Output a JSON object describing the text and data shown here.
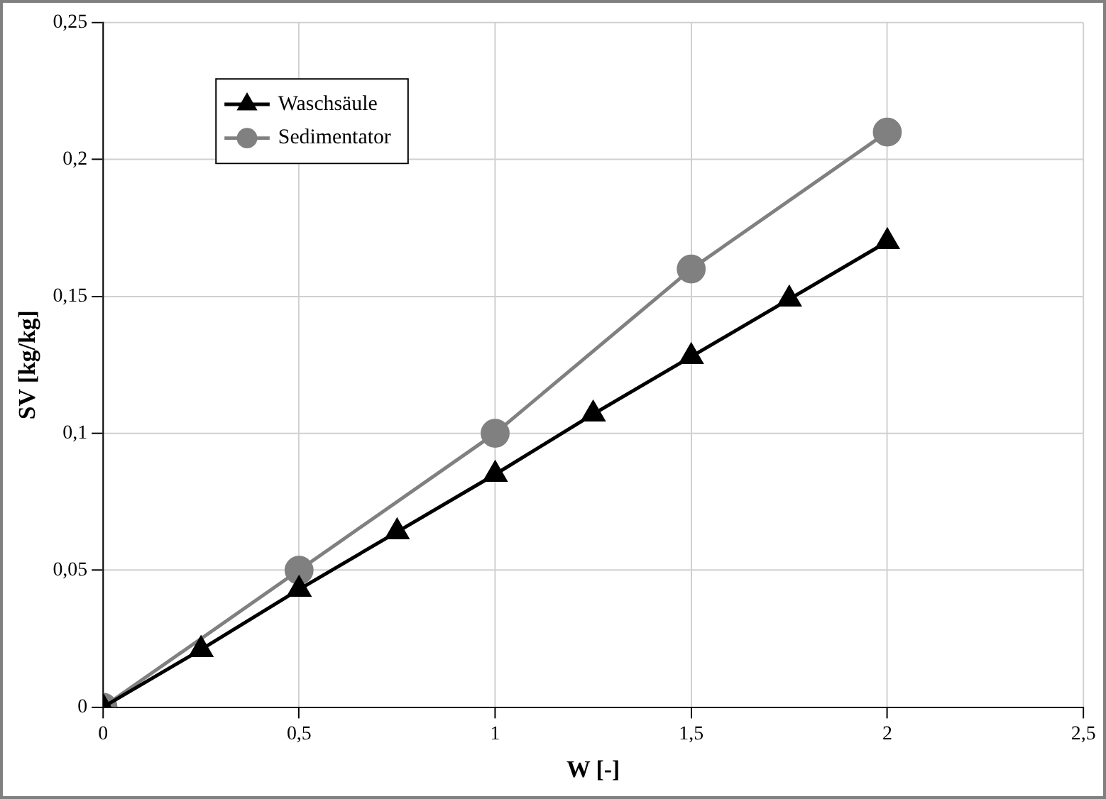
{
  "chart_data": {
    "type": "line",
    "xlabel": "W [-]",
    "ylabel": "SV [kg/kg]",
    "xlim": [
      0,
      2.5
    ],
    "xticks": [
      0,
      {
        "value": 0.5,
        "label": "0,5"
      },
      1,
      {
        "value": 1.5,
        "label": "1,5"
      },
      2,
      {
        "value": 2.5,
        "label": "2,5"
      }
    ],
    "ylim": [
      0,
      0.25
    ],
    "yticks": [
      0,
      {
        "value": 0.05,
        "label": "0,05"
      },
      {
        "value": 0.1,
        "label": "0,1"
      },
      {
        "value": 0.15,
        "label": "0,15"
      },
      {
        "value": 0.2,
        "label": "0,2"
      },
      {
        "value": 0.25,
        "label": "0,25"
      }
    ],
    "grid": true,
    "legend": "top left",
    "line_style": "solid",
    "series": [
      {
        "name": "Waschsäule",
        "color": "#000000",
        "marker": "triangle",
        "x": [
          0,
          0.25,
          0.5,
          0.75,
          1,
          1.25,
          1.5,
          1.75,
          2
        ],
        "values": [
          0,
          0.021,
          0.043,
          0.064,
          0.085,
          0.107,
          0.128,
          0.149,
          0.17
        ]
      },
      {
        "name": "Sedimentator",
        "color": "#808080",
        "marker": "circle",
        "x": [
          0,
          0.5,
          1,
          1.5,
          2
        ],
        "values": [
          0,
          0.05,
          0.1,
          0.16,
          0.21
        ]
      }
    ]
  }
}
